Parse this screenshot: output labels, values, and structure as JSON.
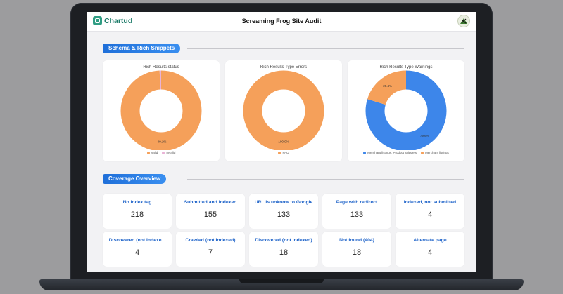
{
  "header": {
    "logo": "Chartud",
    "title": "Screaming Frog Site Audit"
  },
  "sections": {
    "schema": "Schema & Rich Snippets",
    "coverage": "Coverage Overview"
  },
  "colors": {
    "orange": "#f5a05a",
    "pink": "#e9b2d6",
    "blue": "#3d86ea",
    "accent": "#1f6fd9"
  },
  "charts": [
    {
      "title": "Rich Results status",
      "slices": [
        {
          "label": "Valid",
          "value": 99.2,
          "color": "#f5a05a",
          "pct": "99.2%"
        },
        {
          "label": "Invalid",
          "value": 0.8,
          "color": "#e9b2d6",
          "pct": ""
        }
      ]
    },
    {
      "title": "Rich Results Type Errors",
      "slices": [
        {
          "label": "FAQ",
          "value": 100,
          "color": "#f5a05a",
          "pct": "100.0%"
        }
      ]
    },
    {
      "title": "Rich Results Type Warnings",
      "slices": [
        {
          "label": "Merchant listings, Product snippets",
          "value": 79.6,
          "color": "#3d86ea",
          "pct": "79.6%"
        },
        {
          "label": "Merchant listings",
          "value": 20.4,
          "color": "#f5a05a",
          "pct": "20.4%"
        }
      ]
    }
  ],
  "coverage": [
    {
      "label": "No index tag",
      "value": "218"
    },
    {
      "label": "Submitted and Indexed",
      "value": "155"
    },
    {
      "label": "URL is unknow to Google",
      "value": "133"
    },
    {
      "label": "Page with redirect",
      "value": "133"
    },
    {
      "label": "Indexed, not submitted",
      "value": "4"
    },
    {
      "label": "Discovered (not Indexe...",
      "value": "4"
    },
    {
      "label": "Crawled (not Indexed)",
      "value": "7"
    },
    {
      "label": "Discovered (not indexed)",
      "value": "18"
    },
    {
      "label": "Not found (404)",
      "value": "18"
    },
    {
      "label": "Alternate page",
      "value": "4"
    }
  ]
}
